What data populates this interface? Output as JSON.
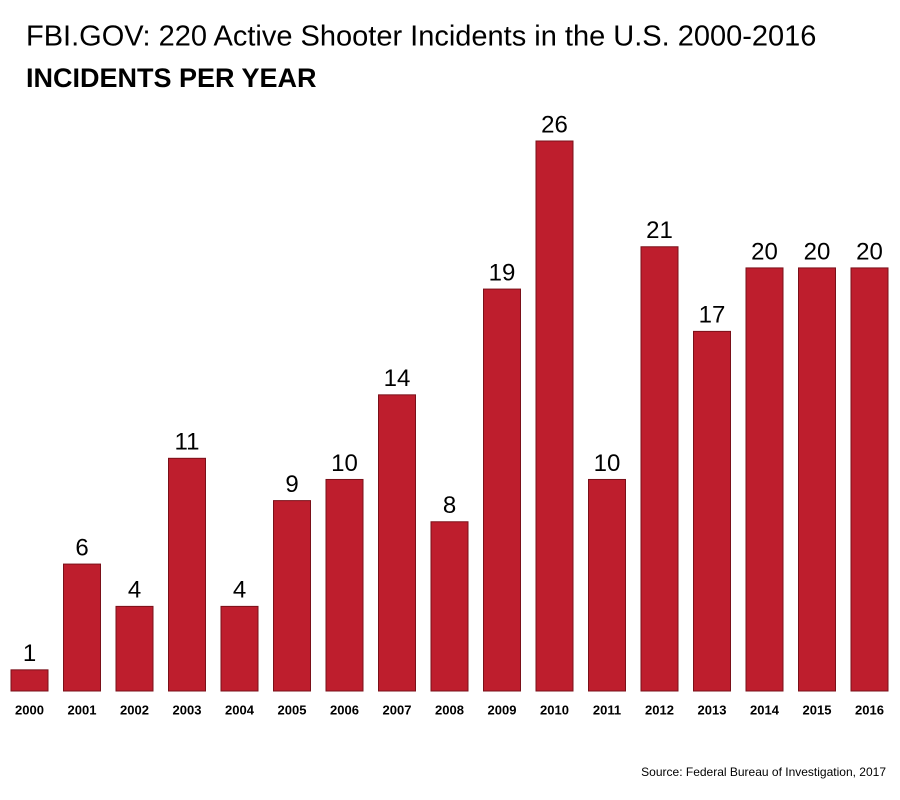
{
  "chart_data": {
    "type": "bar",
    "title": "FBI.GOV: 220 Active Shooter Incidents in the U.S. 2000-2016",
    "subtitle": "INCIDENTS PER YEAR",
    "source": "Source: Federal Bureau of Investigation, 2017",
    "categories": [
      "2000",
      "2001",
      "2002",
      "2003",
      "2004",
      "2005",
      "2006",
      "2007",
      "2008",
      "2009",
      "2010",
      "2011",
      "2012",
      "2013",
      "2014",
      "2015",
      "2016"
    ],
    "values": [
      1,
      6,
      4,
      11,
      4,
      9,
      10,
      14,
      8,
      19,
      26,
      10,
      21,
      17,
      20,
      20,
      20
    ],
    "color": "#be1e2d"
  }
}
